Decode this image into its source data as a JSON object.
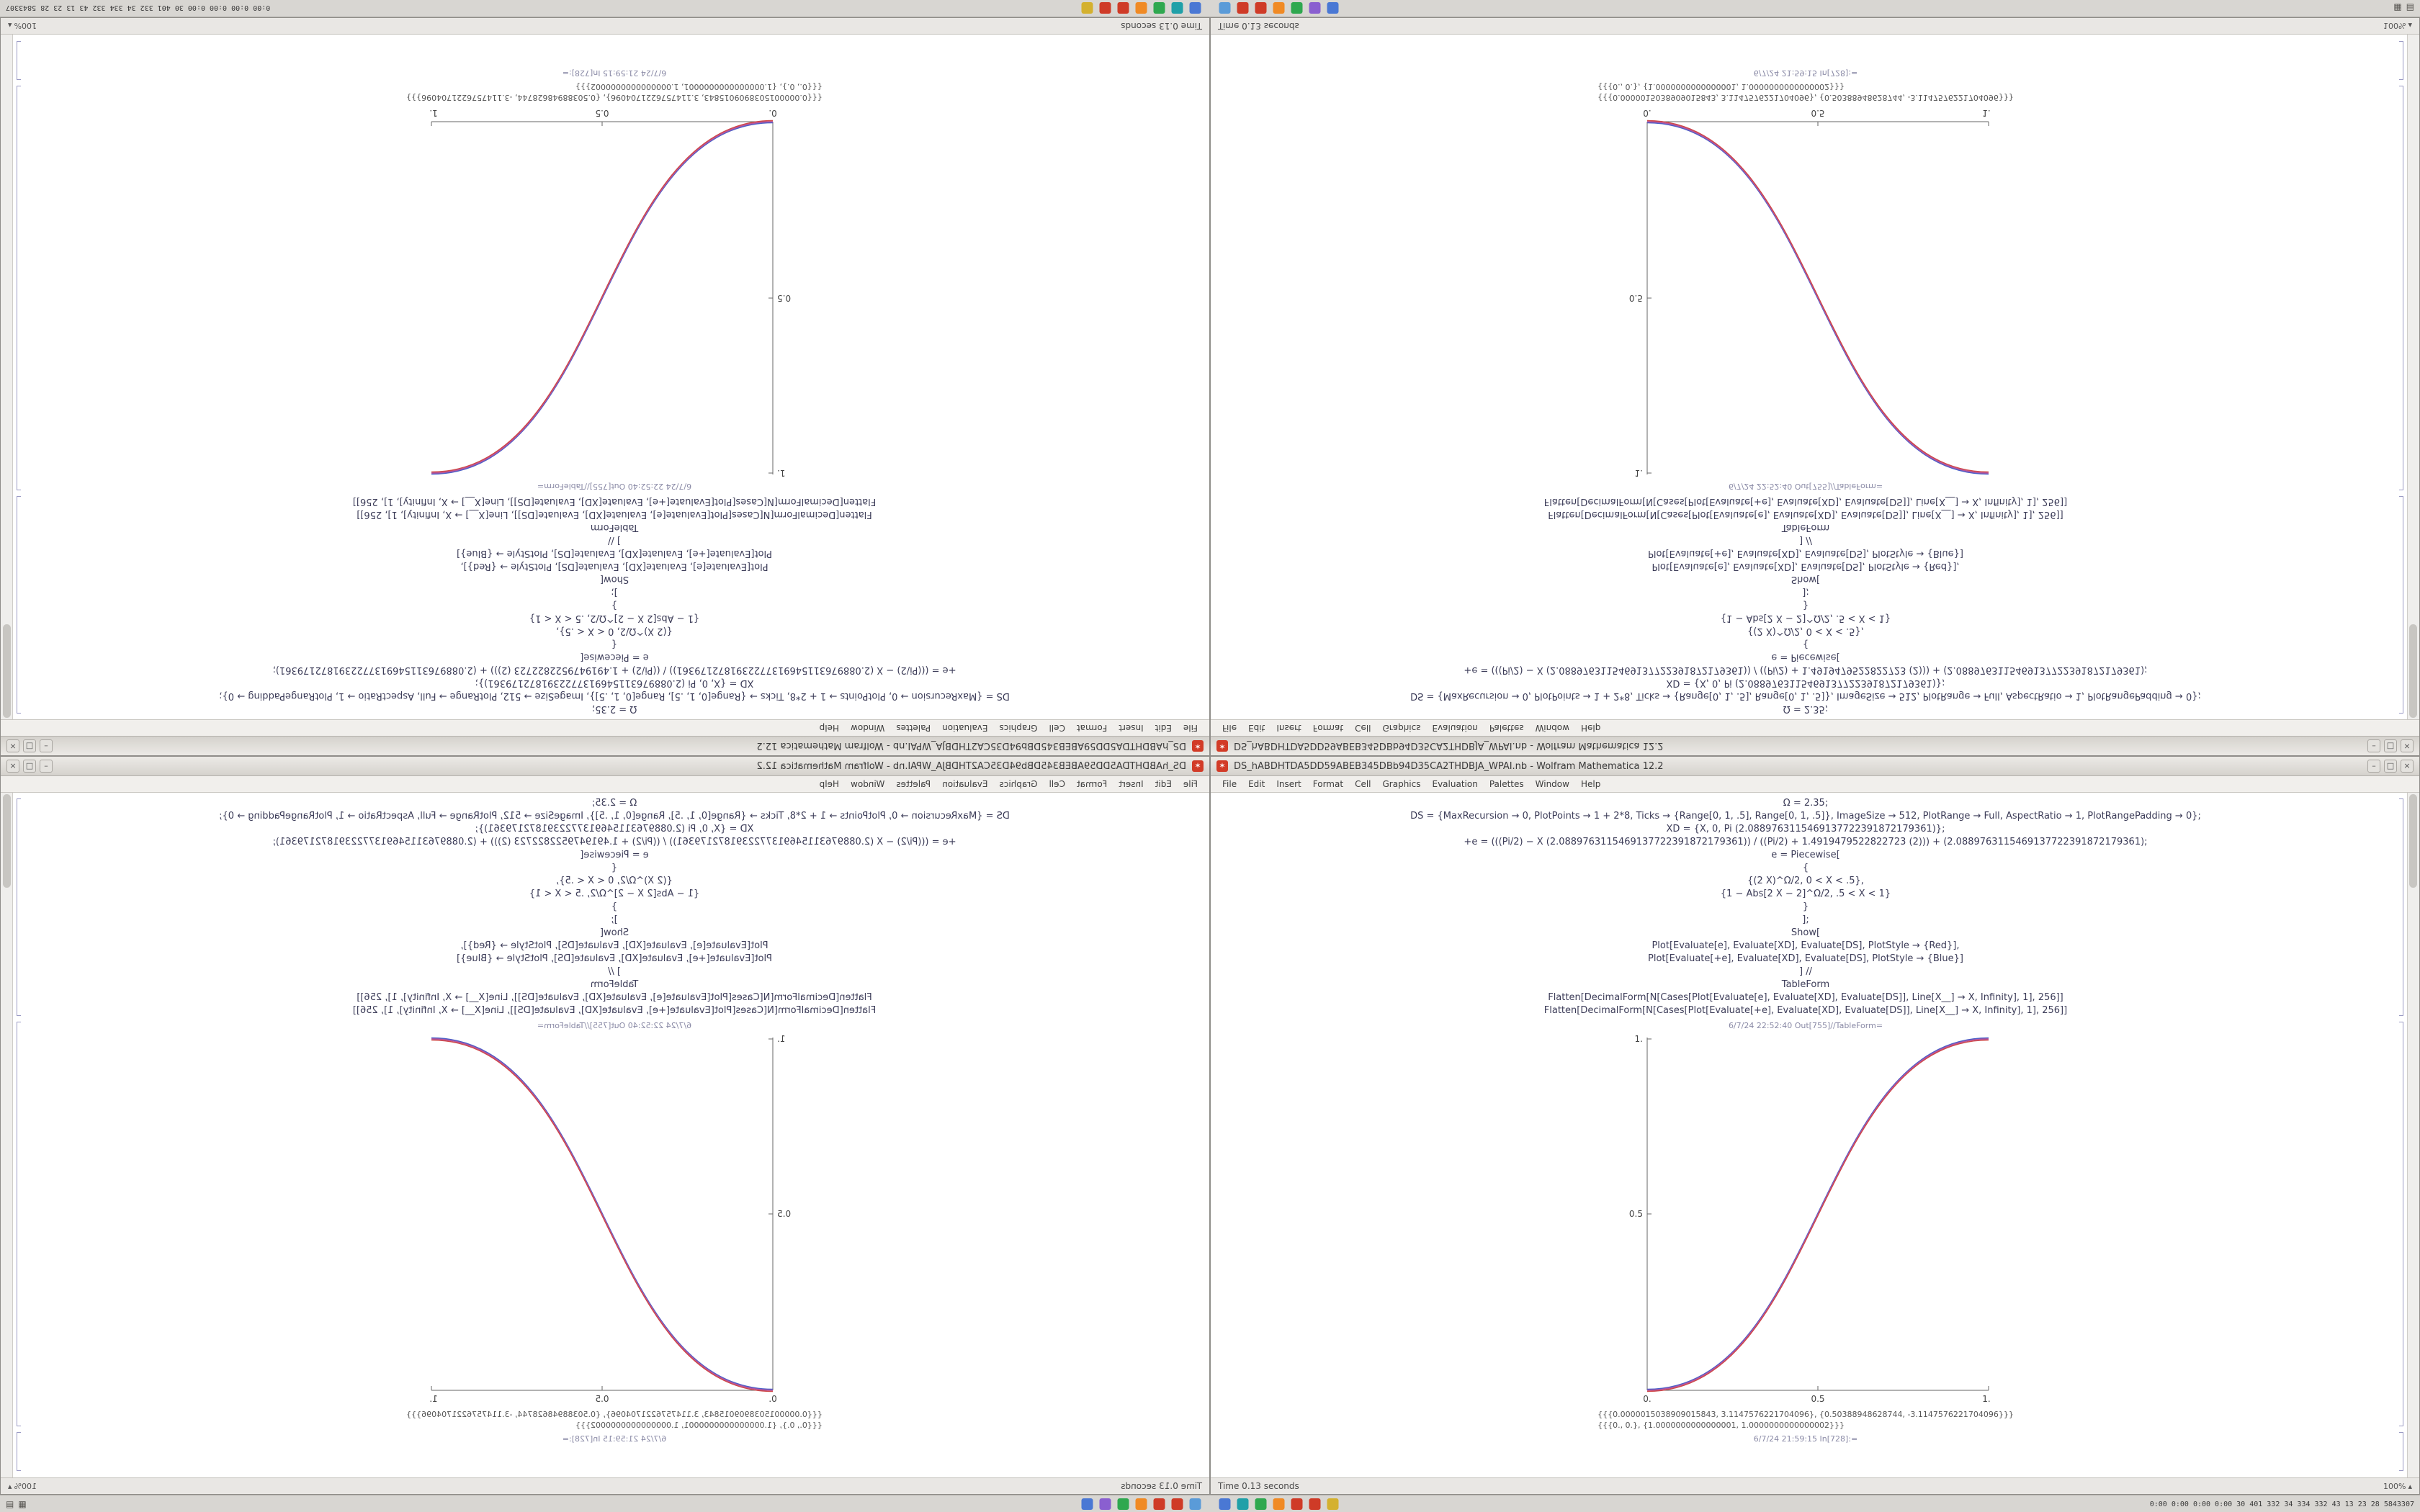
{
  "window": {
    "title": "DS_hABDHTDA5DD59ABEB345DBb94D35CA2THDBJA_WPAI.nb - Wolfram Mathematica 12.2",
    "app_icon_glyph": "✶",
    "controls": {
      "minimize": "–",
      "maximize": "□",
      "close": "×"
    },
    "menus": [
      "File",
      "Edit",
      "Insert",
      "Format",
      "Cell",
      "Graphics",
      "Evaluation",
      "Palettes",
      "Window",
      "Help"
    ],
    "status_time": "Time 0.13 seconds",
    "zoom": "100%",
    "zoom_caret": "▴",
    "notebook": {
      "code_lines": [
        "Ω = 2.35;",
        "DS = {MaxRecursion → 0, PlotPoints → 1 + 2*8, Ticks → {Range[0, 1, .5], Range[0, 1, .5]}, ImageSize → 512, PlotRange → Full, AspectRatio → 1, PlotRangePadding → 0};",
        "XD = {X, 0, Pi (2.0889763115469137722391872179361)};",
        "+e = (((Pi/2) − X (2.0889763115469137722391872179361)) / ((Pi/2) + 1.4919479522822723 (2))) + (2.0889763115469137722391872179361);",
        "e = Piecewise[",
        "{",
        "{(2 X)^Ω/2, 0 < X < .5},",
        "{1 − Abs[2 X − 2]^Ω/2, .5 < X < 1}",
        "}",
        "];",
        "Show[",
        "Plot[Evaluate[e], Evaluate[XD], Evaluate[DS], PlotStyle → {Red}],",
        "Plot[Evaluate[+e], Evaluate[XD], Evaluate[DS], PlotStyle → {Blue}]",
        "] //",
        "TableForm",
        "Flatten[DecimalForm[N[Cases[Plot[Evaluate[e], Evaluate[XD], Evaluate[DS]], Line[X__] → X, Infinity], 1], 256]]",
        "Flatten[DecimalForm[N[Cases[Plot[Evaluate[+e], Evaluate[XD], Evaluate[DS]], Line[X__] → X, Infinity], 1], 256]]"
      ],
      "out_label": "6/7/24 22:52:40 Out[755]//TableForm=",
      "result_lines": [
        "{{{0.0000015038909015843, 3.1147576221704096}, {0.50388948628744, -3.1147576221704096}}}",
        "{{{0., 0.}, {1.0000000000000001, 1.0000000000000002}}}"
      ],
      "in_label_bottom": "6/7/24 21:59:15 In[728]:="
    }
  },
  "chart_data": {
    "type": "line",
    "title": "",
    "xlabel": "",
    "ylabel": "",
    "xlim": [
      0,
      1
    ],
    "ylim": [
      0,
      1
    ],
    "grid": false,
    "legend": false,
    "xtick_labels": [
      "0.",
      "0.5",
      "1."
    ],
    "ytick_labels": [
      "0.5",
      "1."
    ],
    "x": [
      0,
      0.05,
      0.1,
      0.15,
      0.2,
      0.25,
      0.3,
      0.35,
      0.4,
      0.45,
      0.5,
      0.55,
      0.6,
      0.65,
      0.7,
      0.75,
      0.8,
      0.85,
      0.9,
      0.95,
      1
    ],
    "series": [
      {
        "name": "Plot red (Piecewise smoothstep, Ω = 2.35)",
        "color": "#cf4848",
        "y": [
          0,
          0.0022,
          0.0114,
          0.0295,
          0.058,
          0.0981,
          0.1505,
          0.2163,
          0.296,
          0.3903,
          0.5,
          0.6097,
          0.704,
          0.7837,
          0.8495,
          0.9019,
          0.942,
          0.9705,
          0.9886,
          0.9978,
          1
        ]
      },
      {
        "name": "Plot blue (overlapping)",
        "color": "#4a5fc8",
        "y": [
          0,
          0.0022,
          0.0114,
          0.0295,
          0.058,
          0.0981,
          0.1505,
          0.2163,
          0.296,
          0.3903,
          0.5,
          0.6097,
          0.704,
          0.7837,
          0.8495,
          0.9019,
          0.942,
          0.9705,
          0.9886,
          0.9978,
          1
        ]
      }
    ]
  },
  "taskbar": {
    "launcher": [
      {
        "name": "window-list-icon",
        "label": "▤"
      },
      {
        "name": "show-desktop-icon",
        "label": "▦"
      }
    ],
    "dock_icons": [
      {
        "name": "files-icon",
        "color": "#4a78d4"
      },
      {
        "name": "settings-icon",
        "color": "#8a5fd0"
      },
      {
        "name": "software-icon",
        "color": "#2fa84f"
      },
      {
        "name": "browser-icon",
        "color": "#f08a24"
      },
      {
        "name": "mathematica-icon",
        "color": "#cf3b27"
      },
      {
        "name": "mathematica-icon",
        "color": "#cf3b27"
      },
      {
        "name": "terminal-icon",
        "color": "#5a9bd8"
      },
      {
        "name": "files-icon",
        "color": "#4a78d4"
      },
      {
        "name": "media-icon",
        "color": "#20a0a8"
      },
      {
        "name": "software-icon",
        "color": "#2fa84f"
      },
      {
        "name": "browser-icon",
        "color": "#f08a24"
      },
      {
        "name": "mathematica-icon",
        "color": "#cf3b27"
      },
      {
        "name": "mathematica-icon",
        "color": "#cf3b27"
      },
      {
        "name": "text-editor-icon",
        "color": "#d4b12f"
      }
    ],
    "stats": "0:00 0:00 0:00 0:00 30 401 332 34 334 332 43 13 23 28 5843307"
  }
}
